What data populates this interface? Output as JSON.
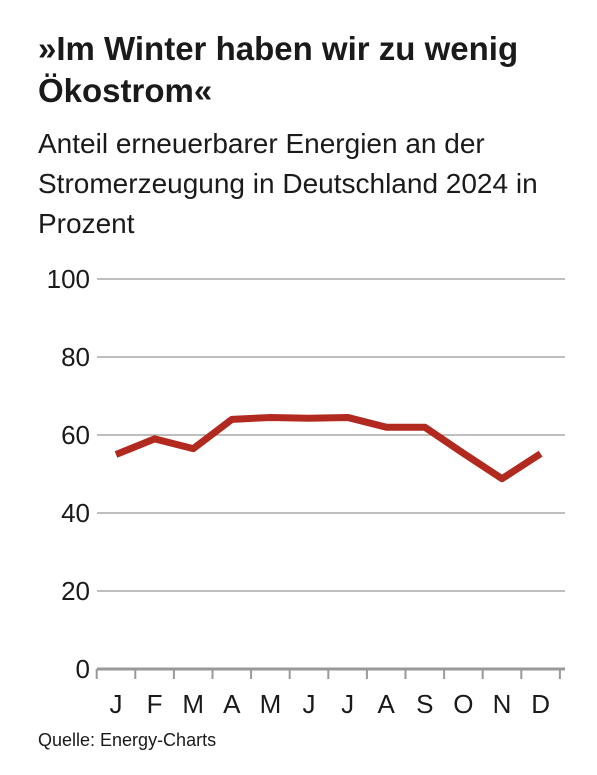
{
  "header": {
    "title": "»Im Winter haben wir zu wenig Ökostrom«",
    "subtitle": "Anteil erneuerbarer Energien an der Stromerzeugung in Deutschland 2024 in Prozent"
  },
  "footer": {
    "source": "Quelle: Energy-Charts"
  },
  "chart_data": {
    "type": "line",
    "title": "»Im Winter haben wir zu wenig Ökostrom«",
    "subtitle": "Anteil erneuerbarer Energien an der Stromerzeugung in Deutschland 2024 in Prozent",
    "xlabel": "",
    "ylabel": "",
    "categories": [
      "J",
      "F",
      "M",
      "A",
      "M",
      "J",
      "J",
      "A",
      "S",
      "O",
      "N",
      "D"
    ],
    "series": [
      {
        "values": [
          55,
          59,
          56.5,
          64,
          64.5,
          64.3,
          64.5,
          62,
          62,
          55.3,
          48.8,
          55.2
        ]
      }
    ],
    "yticks": [
      0,
      20,
      40,
      60,
      80,
      100
    ],
    "ylim": [
      0,
      100
    ],
    "grid": true,
    "colors": {
      "line": "#b22a1f",
      "grid": "#999999",
      "axis": "#999999"
    }
  }
}
